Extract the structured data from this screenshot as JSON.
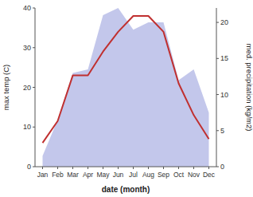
{
  "chart_data": {
    "type": "line",
    "categories": [
      "Jan",
      "Feb",
      "Mar",
      "Apr",
      "May",
      "Jun",
      "Jul",
      "Aug",
      "Sep",
      "Oct",
      "Nov",
      "Dec"
    ],
    "series": [
      {
        "type": "area",
        "axis": "y2",
        "color": "#b8bde8",
        "values": [
          1.5,
          6.5,
          13,
          13.5,
          21,
          22,
          19,
          20,
          20,
          12,
          13.5,
          7.5
        ]
      },
      {
        "type": "line",
        "color": "#c03030",
        "values": [
          6,
          11.5,
          23,
          23,
          29,
          34,
          38,
          38,
          34,
          21,
          13,
          7
        ]
      }
    ],
    "xlabel": "date (month)",
    "ylabel": "max temp (C)",
    "y2label": "med. precipitation (kg/m2)",
    "ylim": [
      0,
      40
    ],
    "yticks": [
      0,
      10,
      20,
      30,
      40
    ],
    "y2lim": [
      0,
      22
    ],
    "y2ticks": [
      0,
      5,
      10,
      15,
      20
    ],
    "grid": false
  }
}
